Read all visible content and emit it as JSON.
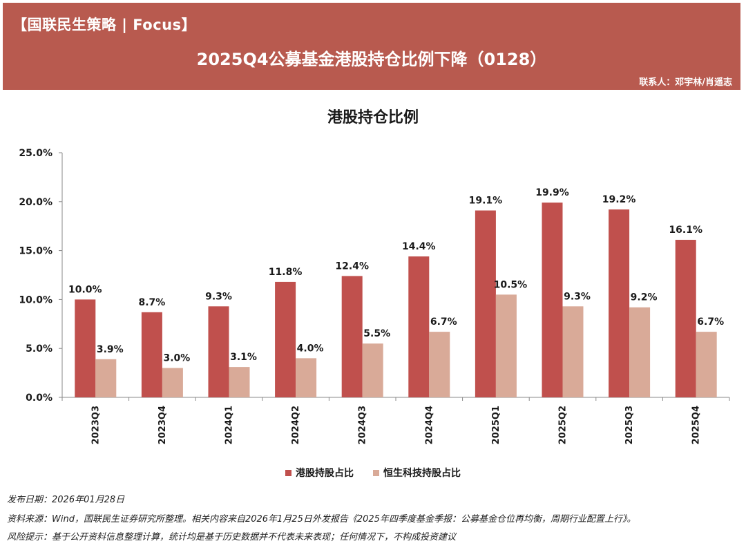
{
  "header": {
    "tag": "【国联民生策略 | Focus】",
    "title": "2025Q4公募基金港股持仓比例下降（0128）",
    "contact": "联系人：邓宇林/肖遥志"
  },
  "colors": {
    "banner": "#b85a4f",
    "series1": "#c0504d",
    "series2": "#d9aa98"
  },
  "chart_data": {
    "type": "bar",
    "title": "港股持仓比例",
    "categories": [
      "2023Q3",
      "2023Q4",
      "2024Q1",
      "2024Q2",
      "2024Q3",
      "2024Q4",
      "2025Q1",
      "2025Q2",
      "2025Q3",
      "2025Q4"
    ],
    "series": [
      {
        "name": "港股持股占比",
        "values": [
          10.0,
          8.7,
          9.3,
          11.8,
          12.4,
          14.4,
          19.1,
          19.9,
          19.2,
          16.1
        ]
      },
      {
        "name": "恒生科技持股占比",
        "values": [
          3.9,
          3.0,
          3.1,
          4.0,
          5.5,
          6.7,
          10.5,
          9.3,
          9.2,
          6.7
        ]
      }
    ],
    "ylim": [
      0,
      25
    ],
    "yticks": [
      0,
      5,
      10,
      15,
      20,
      25
    ],
    "ytick_labels": [
      "0.0%",
      "5.0%",
      "10.0%",
      "15.0%",
      "20.0%",
      "25.0%"
    ],
    "data_labels": [
      [
        "10.0%",
        "8.7%",
        "9.3%",
        "11.8%",
        "12.4%",
        "14.4%",
        "19.1%",
        "19.9%",
        "19.2%",
        "16.1%"
      ],
      [
        "3.9%",
        "3.0%",
        "3.1%",
        "4.0%",
        "5.5%",
        "6.7%",
        "10.5%",
        "9.3%",
        "9.2%",
        "6.7%"
      ]
    ],
    "xlabel": "",
    "ylabel": "",
    "legend_position": "bottom"
  },
  "footer": {
    "date": "发布日期：2026年01月28日",
    "source": "资料来源：Wind，国联民生证券研究所整理。相关内容来自2026年1月25日外发报告《2025年四季度基金季报：公募基金仓位再均衡，周期行业配置上行》。",
    "risk": "风险提示：基于公开资料信息整理计算，统计均是基于历史数据并不代表未来表现；任何情况下，不构成投资建议"
  }
}
